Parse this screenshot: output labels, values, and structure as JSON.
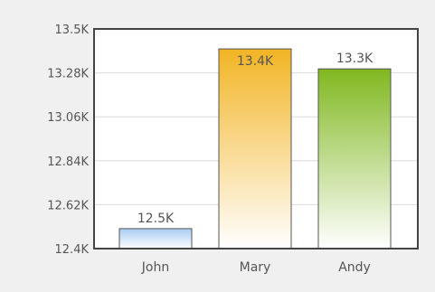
{
  "chart_data": {
    "type": "bar",
    "categories": [
      "John",
      "Mary",
      "Andy"
    ],
    "values": [
      12.5,
      13.4,
      13.3
    ],
    "value_labels": [
      "12.5K",
      "13.4K",
      "13.3K"
    ],
    "ylim": [
      12.4,
      13.5
    ],
    "y_ticks": [
      12.4,
      12.62,
      12.84,
      13.06,
      13.28,
      13.5
    ],
    "y_tick_labels": [
      "12.4K",
      "12.62K",
      "12.84K",
      "13.06K",
      "13.28K",
      "13.5K"
    ],
    "grid": true,
    "title": "",
    "xlabel": "",
    "ylabel": "",
    "colors": {
      "canvas_background": "#f0f0f0",
      "plot_background": "#ffffff",
      "plot_border": "#444444",
      "gridline": "#dcdcdc",
      "text": "#555555",
      "bar_outline": "#555555",
      "John": [
        "#a8ccf2",
        "#ffffff"
      ],
      "Mary": [
        "#f2b424",
        "#ffffff"
      ],
      "Andy": [
        "#80b820",
        "#ffffff"
      ]
    }
  }
}
